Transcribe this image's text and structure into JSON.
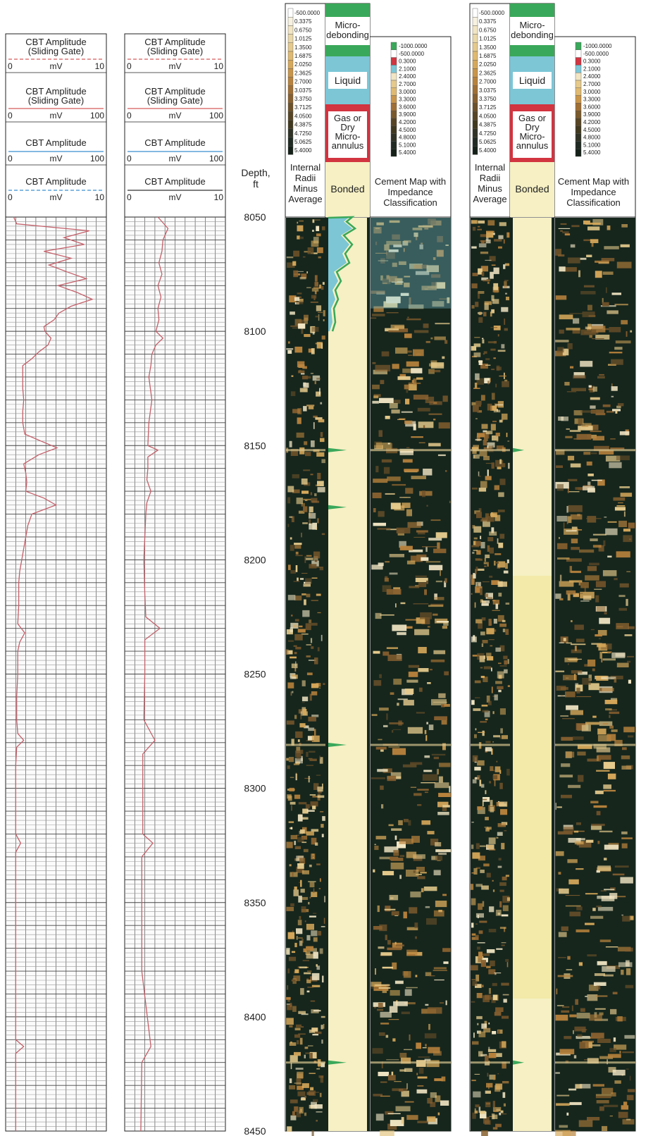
{
  "chart_data": {
    "type": "line",
    "depth_axis": {
      "label_lines": [
        "Depth,",
        "ft"
      ],
      "ticks": [
        8050,
        8100,
        8150,
        8200,
        8250,
        8300,
        8350,
        8400,
        8450
      ],
      "range": [
        8050,
        8450
      ]
    },
    "cbt_tracks": [
      {
        "curves": [
          {
            "title_lines": [
              "CBT Amplitude",
              "(Sliding Gate)"
            ],
            "unit": "mV",
            "min": "0",
            "max": "10",
            "color": "#d85a5a",
            "dashed": true
          },
          {
            "title_lines": [
              "CBT Amplitude",
              "(Sliding Gate)"
            ],
            "unit": "mV",
            "min": "0",
            "max": "100",
            "color": "#d85a5a",
            "dashed": false
          },
          {
            "title_lines": [
              "CBT Amplitude"
            ],
            "unit": "mV",
            "min": "0",
            "max": "100",
            "color": "#3a8fd0",
            "dashed": false
          },
          {
            "title_lines": [
              "CBT Amplitude"
            ],
            "unit": "mV",
            "min": "0",
            "max": "10",
            "color": "#3a8fd0",
            "dashed": true
          }
        ],
        "trace": {
          "color": "#c4606a",
          "depth": [
            8050,
            8053,
            8056,
            8059,
            8062,
            8065,
            8068,
            8071,
            8074,
            8077,
            8080,
            8083,
            8086,
            8089,
            8092,
            8095,
            8098,
            8100,
            8103,
            8106,
            8109,
            8112,
            8115,
            8120,
            8125,
            8130,
            8135,
            8140,
            8145,
            8148,
            8151,
            8154,
            8158,
            8162,
            8166,
            8170,
            8173,
            8176,
            8180,
            8185,
            8190,
            8195,
            8200,
            8205,
            8210,
            8220,
            8228,
            8232,
            8236,
            8240,
            8250,
            8260,
            8270,
            8276,
            8279,
            8282,
            8290,
            8300,
            8310,
            8320,
            8324,
            8328,
            8340,
            8360,
            8370,
            8390,
            8410,
            8413,
            8416,
            8430,
            8450
          ],
          "value_mv": [
            0.8,
            1.1,
            8.3,
            5.8,
            7.8,
            3.8,
            6.5,
            4.3,
            6.1,
            8.0,
            5.2,
            7.1,
            8.6,
            6.5,
            5.3,
            4.8,
            3.8,
            3.9,
            4.5,
            4.2,
            3.3,
            2.6,
            1.7,
            1.7,
            1.7,
            1.8,
            1.7,
            1.7,
            1.9,
            3.5,
            5.1,
            3.3,
            1.8,
            2.0,
            2.1,
            2.0,
            3.8,
            5.0,
            2.6,
            2.2,
            2.0,
            1.8,
            1.6,
            1.4,
            1.3,
            1.3,
            1.2,
            1.9,
            1.4,
            1.2,
            1.2,
            1.1,
            1.1,
            1.2,
            1.8,
            1.1,
            1.0,
            1.0,
            1.0,
            1.0,
            1.5,
            1.0,
            1.0,
            1.0,
            1.0,
            1.0,
            1.0,
            1.8,
            1.0,
            1.0,
            1.0
          ]
        }
      },
      {
        "curves": [
          {
            "title_lines": [
              "CBT Amplitude",
              "(Sliding Gate)"
            ],
            "unit": "mV",
            "min": "0",
            "max": "10",
            "color": "#d85a5a",
            "dashed": true
          },
          {
            "title_lines": [
              "CBT Amplitude",
              "(Sliding Gate)"
            ],
            "unit": "mV",
            "min": "0",
            "max": "100",
            "color": "#d85a5a",
            "dashed": false
          },
          {
            "title_lines": [
              "CBT Amplitude"
            ],
            "unit": "mV",
            "min": "0",
            "max": "100",
            "color": "#3a8fd0",
            "dashed": false
          },
          {
            "title_lines": [
              "CBT Amplitude"
            ],
            "unit": "mV",
            "min": "0",
            "max": "10",
            "color": "#333333",
            "dashed": false
          }
        ],
        "trace": {
          "color": "#c4606a",
          "depth": [
            8050,
            8055,
            8060,
            8065,
            8070,
            8075,
            8080,
            8085,
            8090,
            8095,
            8100,
            8103,
            8106,
            8110,
            8115,
            8120,
            8130,
            8140,
            8150,
            8152,
            8155,
            8160,
            8165,
            8170,
            8175,
            8180,
            8190,
            8200,
            8215,
            8225,
            8230,
            8235,
            8250,
            8270,
            8279,
            8285,
            8300,
            8320,
            8324,
            8330,
            8360,
            8380,
            8413,
            8420,
            8450
          ],
          "value_mv": [
            3.3,
            4.3,
            3.8,
            3.7,
            3.4,
            3.7,
            3.3,
            3.6,
            3.3,
            3.4,
            3.1,
            3.8,
            3.1,
            2.7,
            2.6,
            2.4,
            2.7,
            2.4,
            2.3,
            3.3,
            2.3,
            2.3,
            2.2,
            2.6,
            2.2,
            2.1,
            2.0,
            1.9,
            2.0,
            2.1,
            3.5,
            2.0,
            2.0,
            1.9,
            3.0,
            1.8,
            1.8,
            1.8,
            2.8,
            1.7,
            1.7,
            1.7,
            2.6,
            1.7,
            1.6
          ]
        }
      }
    ],
    "image_tracks": [
      {
        "internal_radii": {
          "title_lines": [
            "Internal",
            "Radii",
            "Minus",
            "Average"
          ],
          "scale": [
            "-500.0000",
            "0.3375",
            "0.6750",
            "1.0125",
            "1.3500",
            "1.6875",
            "2.0250",
            "2.3625",
            "2.7000",
            "3.0375",
            "3.3750",
            "3.7125",
            "4.0500",
            "4.3875",
            "4.7250",
            "5.0625",
            "5.4000"
          ]
        },
        "classification": {
          "items": [
            {
              "label": "Micro-\ndebonding",
              "color": "#3aa85a"
            },
            {
              "label": "Liquid",
              "color": "#7cc6d6"
            },
            {
              "label": "Gas or\nDry\nMicro-\nannulus",
              "color": "#d23440"
            },
            {
              "label": "Bonded",
              "color": "#f6f0c4"
            }
          ],
          "label": "Bonded"
        },
        "cement_map": {
          "title_lines": [
            "Cement Map with",
            "Impedance",
            "Classification"
          ],
          "scale": [
            "-1000.0000",
            "-500.0000",
            "0.3000",
            "2.1000",
            "2.4000",
            "2.7000",
            "3.0000",
            "3.3000",
            "3.6000",
            "3.9000",
            "4.2000",
            "4.5000",
            "4.8000",
            "5.1000",
            "5.4000"
          ]
        }
      },
      {
        "internal_radii": {
          "title_lines": [
            "Internal",
            "Radii",
            "Minus",
            "Average"
          ],
          "scale": [
            "-500.0000",
            "0.3375",
            "0.6750",
            "1.0125",
            "1.3500",
            "1.6875",
            "2.0250",
            "2.3625",
            "2.7000",
            "3.0375",
            "3.3750",
            "3.7125",
            "4.0500",
            "4.3875",
            "4.7250",
            "5.0625",
            "5.4000"
          ]
        },
        "classification": {
          "items": [
            {
              "label": "Micro-\ndebonding",
              "color": "#3aa85a"
            },
            {
              "label": "Liquid",
              "color": "#7cc6d6"
            },
            {
              "label": "Gas or\nDry\nMicro-\nannulus",
              "color": "#d23440"
            },
            {
              "label": "Bonded",
              "color": "#f6f0c4"
            }
          ],
          "label": "Bonded"
        },
        "cement_map": {
          "title_lines": [
            "Cement Map with",
            "Impedance",
            "Classification"
          ],
          "scale": [
            "-1000.0000",
            "-500.0000",
            "0.3000",
            "2.1000",
            "2.4000",
            "2.7000",
            "3.0000",
            "3.3000",
            "3.6000",
            "3.9000",
            "4.2000",
            "4.5000",
            "4.8000",
            "5.1000",
            "5.4000"
          ]
        }
      }
    ]
  }
}
